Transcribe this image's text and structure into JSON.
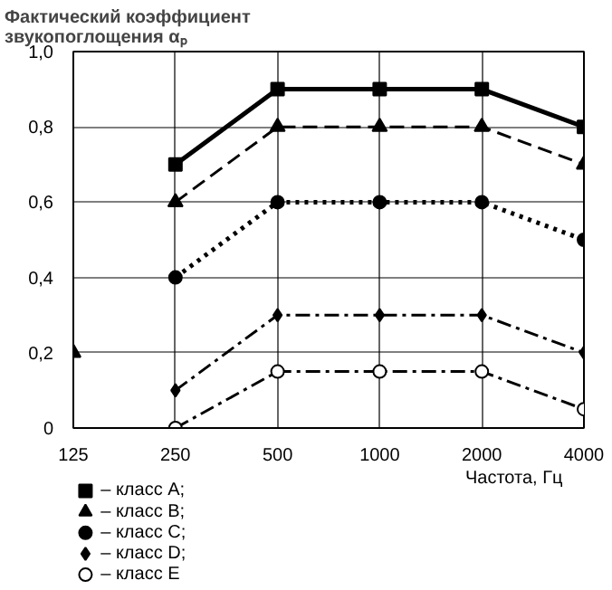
{
  "chart_data": {
    "type": "line",
    "ylabel": "Фактический коэффициент звукопоглощения αₚ",
    "xlabel": "Частота, Гц",
    "categories": [
      "125",
      "250",
      "500",
      "1000",
      "2000",
      "4000"
    ],
    "ylim": [
      0,
      1.0
    ],
    "yticks": [
      0,
      {
        "value": 0.2,
        "label": "0,2"
      },
      {
        "value": 0.4,
        "label": "0,4"
      },
      {
        "value": 0.6,
        "label": "0,6"
      },
      {
        "value": 0.8,
        "label": "0,8"
      },
      {
        "value": 1.0,
        "label": "1,0"
      }
    ],
    "grid": true,
    "legend": "bottom",
    "series": [
      {
        "name": "– класс A;",
        "color": "#000000",
        "values": [
          null,
          0.7,
          0.9,
          0.9,
          0.9,
          0.8
        ],
        "marker": "square",
        "line_style": "solid"
      },
      {
        "name": "– класс B;",
        "color": "#000000",
        "values": [
          null,
          0.6,
          0.8,
          0.8,
          0.8,
          0.7
        ],
        "marker": "triangle",
        "line_style": "dashed"
      },
      {
        "color": "#000000",
        "values": [
          0.2,
          null,
          null,
          null,
          null,
          null
        ],
        "marker": "triangle"
      },
      {
        "name": "– класс C;",
        "color": "#000000",
        "values": [
          null,
          0.4,
          0.6,
          0.6,
          0.6,
          0.5
        ],
        "marker": "circle",
        "line_style": "dotted"
      },
      {
        "name": "– класс D;",
        "color": "#000000",
        "values": [
          null,
          0.1,
          0.3,
          0.3,
          0.3,
          0.2
        ],
        "marker": "diamond",
        "line_style": "dashdot"
      },
      {
        "name": "– класс E",
        "color": "#000000",
        "values": [
          null,
          0,
          0.15,
          0.15,
          0.15,
          0.05
        ],
        "marker": "circle_open",
        "line_style": "dashdot"
      }
    ]
  }
}
